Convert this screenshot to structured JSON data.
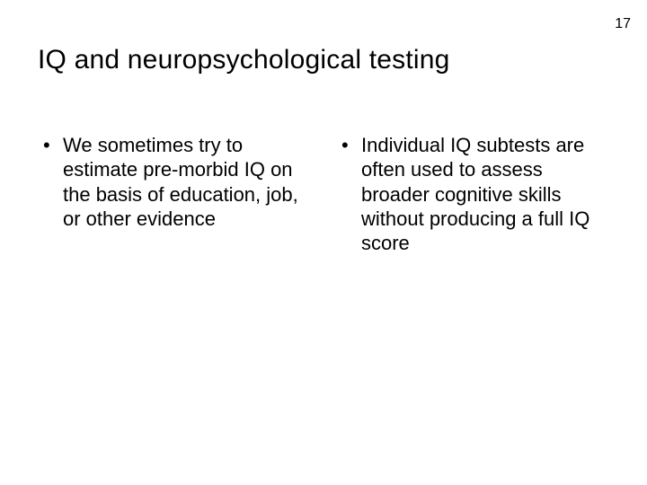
{
  "page_number": "17",
  "title": "IQ and neuropsychological testing",
  "columns": {
    "left": {
      "items": [
        "We sometimes try to estimate pre-morbid IQ on the basis of education, job, or other evidence"
      ]
    },
    "right": {
      "items": [
        "Individual IQ subtests are often used to assess broader cognitive skills without producing a full IQ score"
      ]
    }
  },
  "styling": {
    "background_color": "#ffffff",
    "text_color": "#000000",
    "title_fontsize": 30,
    "body_fontsize": 22,
    "page_number_fontsize": 16,
    "font_family": "Arial"
  }
}
